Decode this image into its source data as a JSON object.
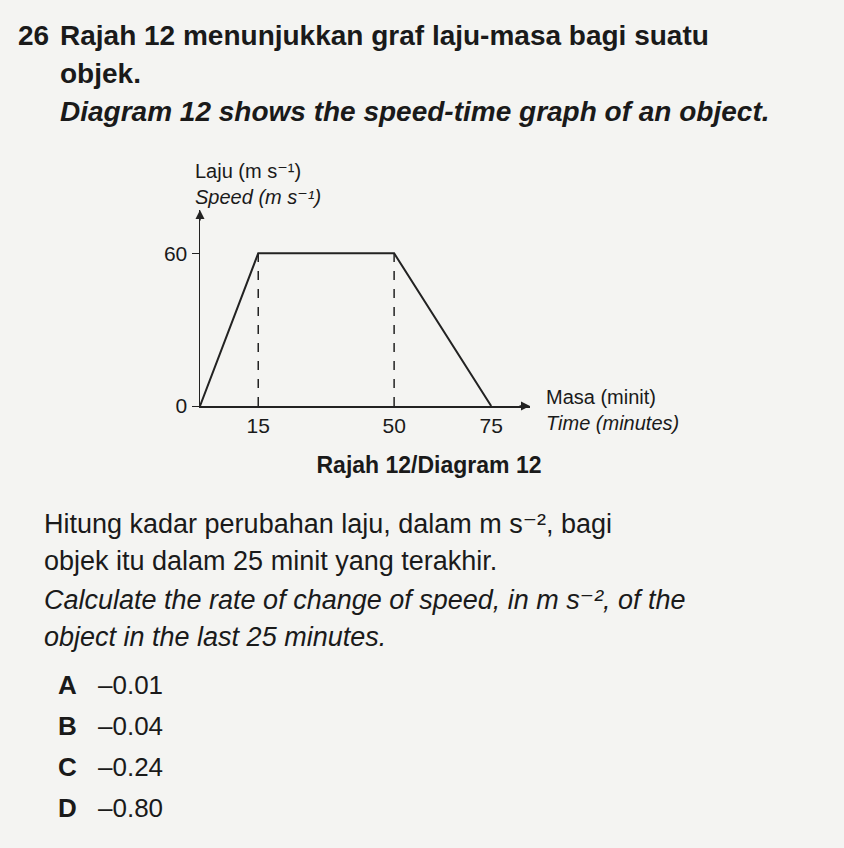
{
  "question": {
    "number": "26",
    "malay_lines": [
      "Rajah 12 menunjukkan graf laju-masa bagi suatu",
      "objek."
    ],
    "english_lines": [
      "Diagram 12 shows the speed-time graph of an object."
    ]
  },
  "chart_data": {
    "type": "line",
    "y_label_lines": [
      "Laju (m s⁻¹)",
      "Speed (m s⁻¹)"
    ],
    "x_label_lines": [
      "Masa (minit)",
      "Time (minutes)"
    ],
    "x": [
      0,
      15,
      50,
      75
    ],
    "values": [
      0,
      60,
      60,
      0
    ],
    "xlim": [
      0,
      85
    ],
    "ylim": [
      0,
      77
    ],
    "xticks": [
      15,
      50,
      75
    ],
    "yticks": [
      0,
      60
    ],
    "grid": false,
    "color": "#222222",
    "line_style": "solid",
    "caption": "Rajah 12/Diagram 12"
  },
  "prompt": {
    "malay_lines": [
      "Hitung kadar perubahan laju, dalam m s⁻², bagi",
      "objek itu dalam 25 minit yang terakhir."
    ],
    "english_lines": [
      "Calculate the rate of change of speed, in m s⁻², of the",
      "object in the last 25 minutes."
    ]
  },
  "options": [
    {
      "letter": "A",
      "text": "–0.01"
    },
    {
      "letter": "B",
      "text": "–0.04"
    },
    {
      "letter": "C",
      "text": "–0.24"
    },
    {
      "letter": "D",
      "text": "–0.80"
    }
  ]
}
